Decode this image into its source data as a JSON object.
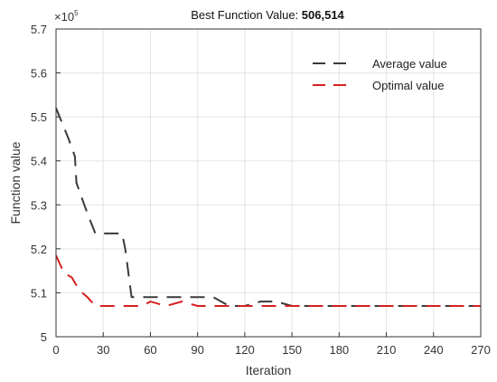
{
  "chart_data": {
    "type": "line",
    "title_prefix": "Best Function Value: ",
    "title_value": "506,514",
    "xlabel": "Iteration",
    "ylabel": "Function value",
    "y_multiplier": "×10",
    "y_multiplier_exp": "5",
    "xlim": [
      0,
      270
    ],
    "ylim": [
      5.0,
      5.7
    ],
    "x_ticks": [
      0,
      30,
      60,
      90,
      120,
      150,
      180,
      210,
      240,
      270
    ],
    "y_ticks": [
      5,
      5.1,
      5.2,
      5.3,
      5.4,
      5.5,
      5.6,
      5.7
    ],
    "y_tick_labels": [
      "5",
      "5.1",
      "5.2",
      "5.3",
      "5.4",
      "5.5",
      "5.6",
      "5.7"
    ],
    "grid": true,
    "legend_position": "top-right",
    "series": [
      {
        "name": "Average value",
        "color": "#3a3a3a",
        "x": [
          0,
          8,
          12,
          13,
          20,
          25,
          30,
          35,
          42,
          44,
          48,
          55,
          60,
          70,
          80,
          90,
          100,
          110,
          120,
          130,
          140,
          150,
          160,
          180,
          200,
          220,
          240,
          270
        ],
        "y": [
          5.52,
          5.45,
          5.41,
          5.35,
          5.28,
          5.235,
          5.235,
          5.235,
          5.235,
          5.2,
          5.09,
          5.09,
          5.09,
          5.09,
          5.09,
          5.09,
          5.09,
          5.07,
          5.07,
          5.08,
          5.08,
          5.07,
          5.07,
          5.07,
          5.07,
          5.07,
          5.07,
          5.07
        ]
      },
      {
        "name": "Optimal value",
        "color": "#d62020",
        "x": [
          0,
          5,
          10,
          15,
          20,
          25,
          30,
          45,
          55,
          60,
          65,
          70,
          80,
          90,
          100,
          120,
          150,
          180,
          210,
          240,
          270
        ],
        "y": [
          5.185,
          5.145,
          5.135,
          5.105,
          5.09,
          5.07,
          5.07,
          5.07,
          5.07,
          5.08,
          5.075,
          5.07,
          5.08,
          5.07,
          5.07,
          5.07,
          5.07,
          5.07,
          5.07,
          5.07,
          5.07
        ]
      }
    ]
  }
}
